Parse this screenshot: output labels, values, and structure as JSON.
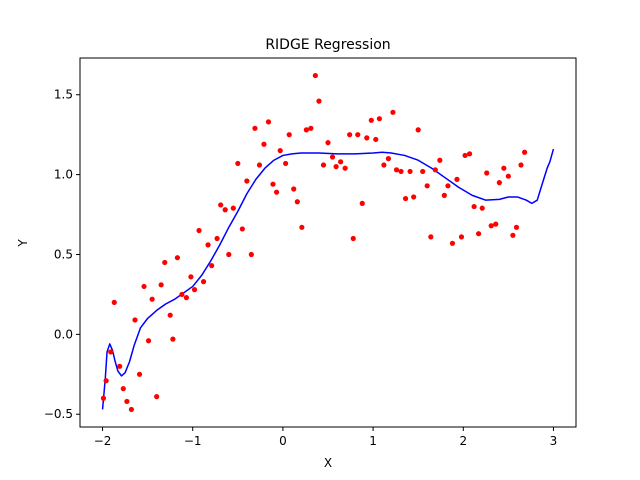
{
  "chart_data": {
    "type": "scatter",
    "title": "RIDGE Regression",
    "xlabel": "X",
    "ylabel": "Y",
    "xlim": [
      -2.25,
      3.25
    ],
    "ylim": [
      -0.58,
      1.73
    ],
    "xticks": [
      -2,
      -1,
      0,
      1,
      2,
      3
    ],
    "xtick_labels": [
      "−2",
      "−1",
      "0",
      "1",
      "2",
      "3"
    ],
    "yticks": [
      -0.5,
      0.0,
      0.5,
      1.0,
      1.5
    ],
    "ytick_labels": [
      "−0.5",
      "0.0",
      "0.5",
      "1.0",
      "1.5"
    ],
    "grid": false,
    "series": [
      {
        "kind": "scatter",
        "color": "#ff0000",
        "points": [
          [
            -1.99,
            -0.4
          ],
          [
            -1.96,
            -0.29
          ],
          [
            -1.91,
            -0.11
          ],
          [
            -1.87,
            0.2
          ],
          [
            -1.81,
            -0.2
          ],
          [
            -1.77,
            -0.34
          ],
          [
            -1.73,
            -0.42
          ],
          [
            -1.68,
            -0.47
          ],
          [
            -1.64,
            0.09
          ],
          [
            -1.59,
            -0.25
          ],
          [
            -1.54,
            0.3
          ],
          [
            -1.49,
            -0.04
          ],
          [
            -1.45,
            0.22
          ],
          [
            -1.4,
            -0.39
          ],
          [
            -1.35,
            0.31
          ],
          [
            -1.31,
            0.45
          ],
          [
            -1.25,
            0.12
          ],
          [
            -1.22,
            -0.03
          ],
          [
            -1.17,
            0.48
          ],
          [
            -1.12,
            0.25
          ],
          [
            -1.07,
            0.23
          ],
          [
            -1.02,
            0.36
          ],
          [
            -0.98,
            0.28
          ],
          [
            -0.93,
            0.65
          ],
          [
            -0.88,
            0.33
          ],
          [
            -0.83,
            0.56
          ],
          [
            -0.79,
            0.43
          ],
          [
            -0.73,
            0.6
          ],
          [
            -0.69,
            0.81
          ],
          [
            -0.64,
            0.78
          ],
          [
            -0.6,
            0.5
          ],
          [
            -0.55,
            0.79
          ],
          [
            -0.5,
            1.07
          ],
          [
            -0.45,
            0.66
          ],
          [
            -0.4,
            0.96
          ],
          [
            -0.35,
            0.5
          ],
          [
            -0.31,
            1.29
          ],
          [
            -0.26,
            1.06
          ],
          [
            -0.21,
            1.19
          ],
          [
            -0.16,
            1.33
          ],
          [
            -0.11,
            0.94
          ],
          [
            -0.07,
            0.89
          ],
          [
            -0.03,
            1.15
          ],
          [
            0.03,
            1.07
          ],
          [
            0.07,
            1.25
          ],
          [
            0.12,
            0.91
          ],
          [
            0.16,
            0.83
          ],
          [
            0.21,
            0.67
          ],
          [
            0.26,
            1.28
          ],
          [
            0.31,
            1.29
          ],
          [
            0.36,
            1.62
          ],
          [
            0.4,
            1.46
          ],
          [
            0.45,
            1.06
          ],
          [
            0.5,
            1.2
          ],
          [
            0.55,
            1.11
          ],
          [
            0.59,
            1.05
          ],
          [
            0.64,
            1.08
          ],
          [
            0.69,
            1.04
          ],
          [
            0.74,
            1.25
          ],
          [
            0.78,
            0.6
          ],
          [
            0.83,
            1.25
          ],
          [
            0.88,
            0.82
          ],
          [
            0.93,
            1.23
          ],
          [
            0.98,
            1.34
          ],
          [
            1.03,
            1.22
          ],
          [
            1.07,
            1.35
          ],
          [
            1.12,
            1.06
          ],
          [
            1.17,
            1.1
          ],
          [
            1.22,
            1.39
          ],
          [
            1.26,
            1.03
          ],
          [
            1.31,
            1.02
          ],
          [
            1.36,
            0.85
          ],
          [
            1.41,
            1.02
          ],
          [
            1.45,
            0.86
          ],
          [
            1.5,
            1.28
          ],
          [
            1.55,
            1.02
          ],
          [
            1.6,
            0.93
          ],
          [
            1.64,
            0.61
          ],
          [
            1.69,
            1.03
          ],
          [
            1.74,
            1.09
          ],
          [
            1.79,
            0.87
          ],
          [
            1.83,
            0.93
          ],
          [
            1.88,
            0.57
          ],
          [
            1.93,
            0.97
          ],
          [
            1.98,
            0.61
          ],
          [
            2.02,
            1.12
          ],
          [
            2.07,
            1.13
          ],
          [
            2.12,
            0.8
          ],
          [
            2.17,
            0.63
          ],
          [
            2.21,
            0.79
          ],
          [
            2.26,
            1.01
          ],
          [
            2.31,
            0.68
          ],
          [
            2.36,
            0.69
          ],
          [
            2.4,
            0.95
          ],
          [
            2.45,
            1.04
          ],
          [
            2.5,
            0.99
          ],
          [
            2.55,
            0.62
          ],
          [
            2.59,
            0.67
          ],
          [
            2.64,
            1.06
          ],
          [
            2.68,
            1.14
          ]
        ]
      },
      {
        "kind": "line",
        "color": "#0000ff",
        "points": [
          [
            -2.0,
            -0.47
          ],
          [
            -1.97,
            -0.28
          ],
          [
            -1.95,
            -0.11
          ],
          [
            -1.92,
            -0.06
          ],
          [
            -1.89,
            -0.1
          ],
          [
            -1.86,
            -0.17
          ],
          [
            -1.83,
            -0.23
          ],
          [
            -1.79,
            -0.26
          ],
          [
            -1.75,
            -0.24
          ],
          [
            -1.7,
            -0.17
          ],
          [
            -1.65,
            -0.07
          ],
          [
            -1.58,
            0.04
          ],
          [
            -1.5,
            0.1
          ],
          [
            -1.4,
            0.15
          ],
          [
            -1.3,
            0.19
          ],
          [
            -1.2,
            0.22
          ],
          [
            -1.1,
            0.26
          ],
          [
            -1.0,
            0.3
          ],
          [
            -0.9,
            0.37
          ],
          [
            -0.8,
            0.46
          ],
          [
            -0.7,
            0.56
          ],
          [
            -0.6,
            0.67
          ],
          [
            -0.5,
            0.77
          ],
          [
            -0.4,
            0.88
          ],
          [
            -0.3,
            0.97
          ],
          [
            -0.2,
            1.04
          ],
          [
            -0.1,
            1.09
          ],
          [
            0.0,
            1.12
          ],
          [
            0.1,
            1.13
          ],
          [
            0.2,
            1.135
          ],
          [
            0.4,
            1.135
          ],
          [
            0.6,
            1.13
          ],
          [
            0.8,
            1.13
          ],
          [
            1.0,
            1.135
          ],
          [
            1.1,
            1.14
          ],
          [
            1.2,
            1.135
          ],
          [
            1.35,
            1.12
          ],
          [
            1.5,
            1.09
          ],
          [
            1.65,
            1.04
          ],
          [
            1.8,
            0.98
          ],
          [
            1.95,
            0.92
          ],
          [
            2.1,
            0.87
          ],
          [
            2.25,
            0.84
          ],
          [
            2.4,
            0.845
          ],
          [
            2.5,
            0.86
          ],
          [
            2.6,
            0.86
          ],
          [
            2.7,
            0.84
          ],
          [
            2.76,
            0.82
          ],
          [
            2.82,
            0.84
          ],
          [
            2.88,
            0.95
          ],
          [
            2.93,
            1.04
          ],
          [
            2.96,
            1.08
          ],
          [
            3.0,
            1.16
          ]
        ]
      }
    ]
  }
}
